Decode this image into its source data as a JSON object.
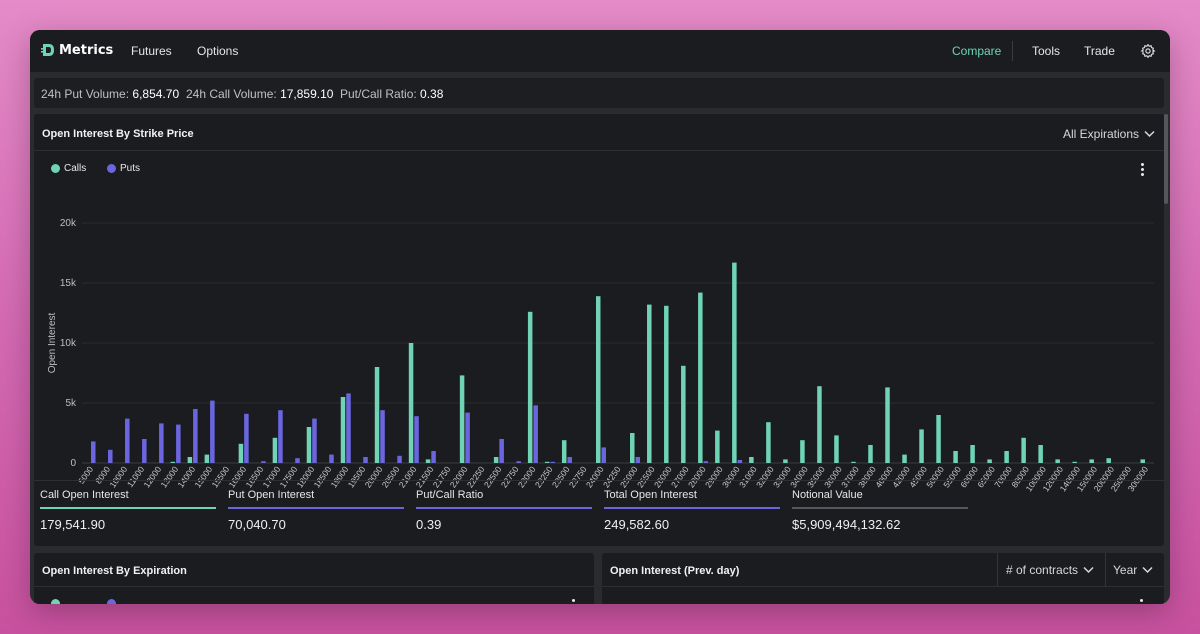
{
  "nav": {
    "brand": "Metrics",
    "futures": "Futures",
    "options": "Options",
    "compare": "Compare",
    "tools": "Tools",
    "trade": "Trade"
  },
  "stats": {
    "put_volume_label": "24h Put Volume:",
    "put_volume": "6,854.70",
    "call_volume_label": "24h Call Volume:",
    "call_volume": "17,859.10",
    "ratio_label": "Put/Call Ratio:",
    "ratio": "0.38"
  },
  "strike_panel": {
    "title": "Open Interest By Strike Price",
    "expirations": "All Expirations",
    "legend_calls": "Calls",
    "legend_puts": "Puts"
  },
  "summary": [
    {
      "label": "Call Open Interest",
      "value": "179,541.90",
      "color": "#6fd3b4"
    },
    {
      "label": "Put Open Interest",
      "value": "70,040.70",
      "color": "#6b66e0"
    },
    {
      "label": "Put/Call Ratio",
      "value": "0.39",
      "color": "#6b66e0"
    },
    {
      "label": "Total Open Interest",
      "value": "249,582.60",
      "color": "#6b66e0"
    },
    {
      "label": "Notional Value",
      "value": "$5,909,494,132.62",
      "color": "#55565e"
    }
  ],
  "expiration_panel": {
    "title": "Open Interest By Expiration"
  },
  "prev_panel": {
    "title": "Open Interest (Prev. day)",
    "unit": "# of contracts",
    "period": "Year"
  },
  "colors": {
    "calls": "#6fd3b4",
    "puts": "#6b66e0",
    "accent": "#6fd3b4"
  },
  "chart_data": {
    "type": "bar",
    "ylabel": "Open Interest",
    "ylim": [
      0,
      20000
    ],
    "yticks": [
      "0",
      "5k",
      "10k",
      "15k",
      "20k"
    ],
    "categories": [
      "5000",
      "8000",
      "10000",
      "11000",
      "12000",
      "13000",
      "14000",
      "15000",
      "15500",
      "16000",
      "16500",
      "17000",
      "17500",
      "18000",
      "18500",
      "19000",
      "19500",
      "20000",
      "20500",
      "21000",
      "21500",
      "21750",
      "22000",
      "22250",
      "22500",
      "22750",
      "23000",
      "23250",
      "23500",
      "23750",
      "24000",
      "24250",
      "25000",
      "25500",
      "26000",
      "27000",
      "28000",
      "29000",
      "30000",
      "31000",
      "32000",
      "33000",
      "34000",
      "35000",
      "36000",
      "37000",
      "38000",
      "40000",
      "42000",
      "45000",
      "50000",
      "55000",
      "60000",
      "65000",
      "70000",
      "80000",
      "100000",
      "120000",
      "140000",
      "150000",
      "200000",
      "250000",
      "300000"
    ],
    "series": [
      {
        "name": "Calls",
        "values": [
          0,
          0,
          0,
          0,
          0,
          100,
          500,
          700,
          0,
          1600,
          0,
          2100,
          0,
          3000,
          0,
          5500,
          0,
          8000,
          0,
          10000,
          300,
          0,
          7300,
          0,
          500,
          0,
          12600,
          100,
          1900,
          0,
          13900,
          0,
          2500,
          13200,
          13100,
          8100,
          14200,
          2700,
          16700,
          500,
          3400,
          300,
          1900,
          6400,
          2300,
          100,
          1500,
          6300,
          700,
          2800,
          4000,
          1000,
          1500,
          300,
          1000,
          2100,
          1500,
          300,
          100,
          300,
          400,
          0,
          300
        ]
      },
      {
        "name": "Puts",
        "values": [
          1800,
          1100,
          3700,
          2000,
          3300,
          3200,
          4500,
          5200,
          0,
          4100,
          150,
          4400,
          400,
          3700,
          700,
          5800,
          500,
          4400,
          600,
          3900,
          1000,
          0,
          4200,
          0,
          2000,
          150,
          4800,
          100,
          500,
          0,
          1300,
          0,
          500,
          0,
          0,
          0,
          150,
          0,
          250,
          0,
          0,
          0,
          0,
          0,
          0,
          0,
          0,
          0,
          0,
          0,
          0,
          0,
          0,
          0,
          0,
          0,
          0,
          0,
          0,
          0,
          0,
          0,
          0
        ]
      }
    ]
  }
}
